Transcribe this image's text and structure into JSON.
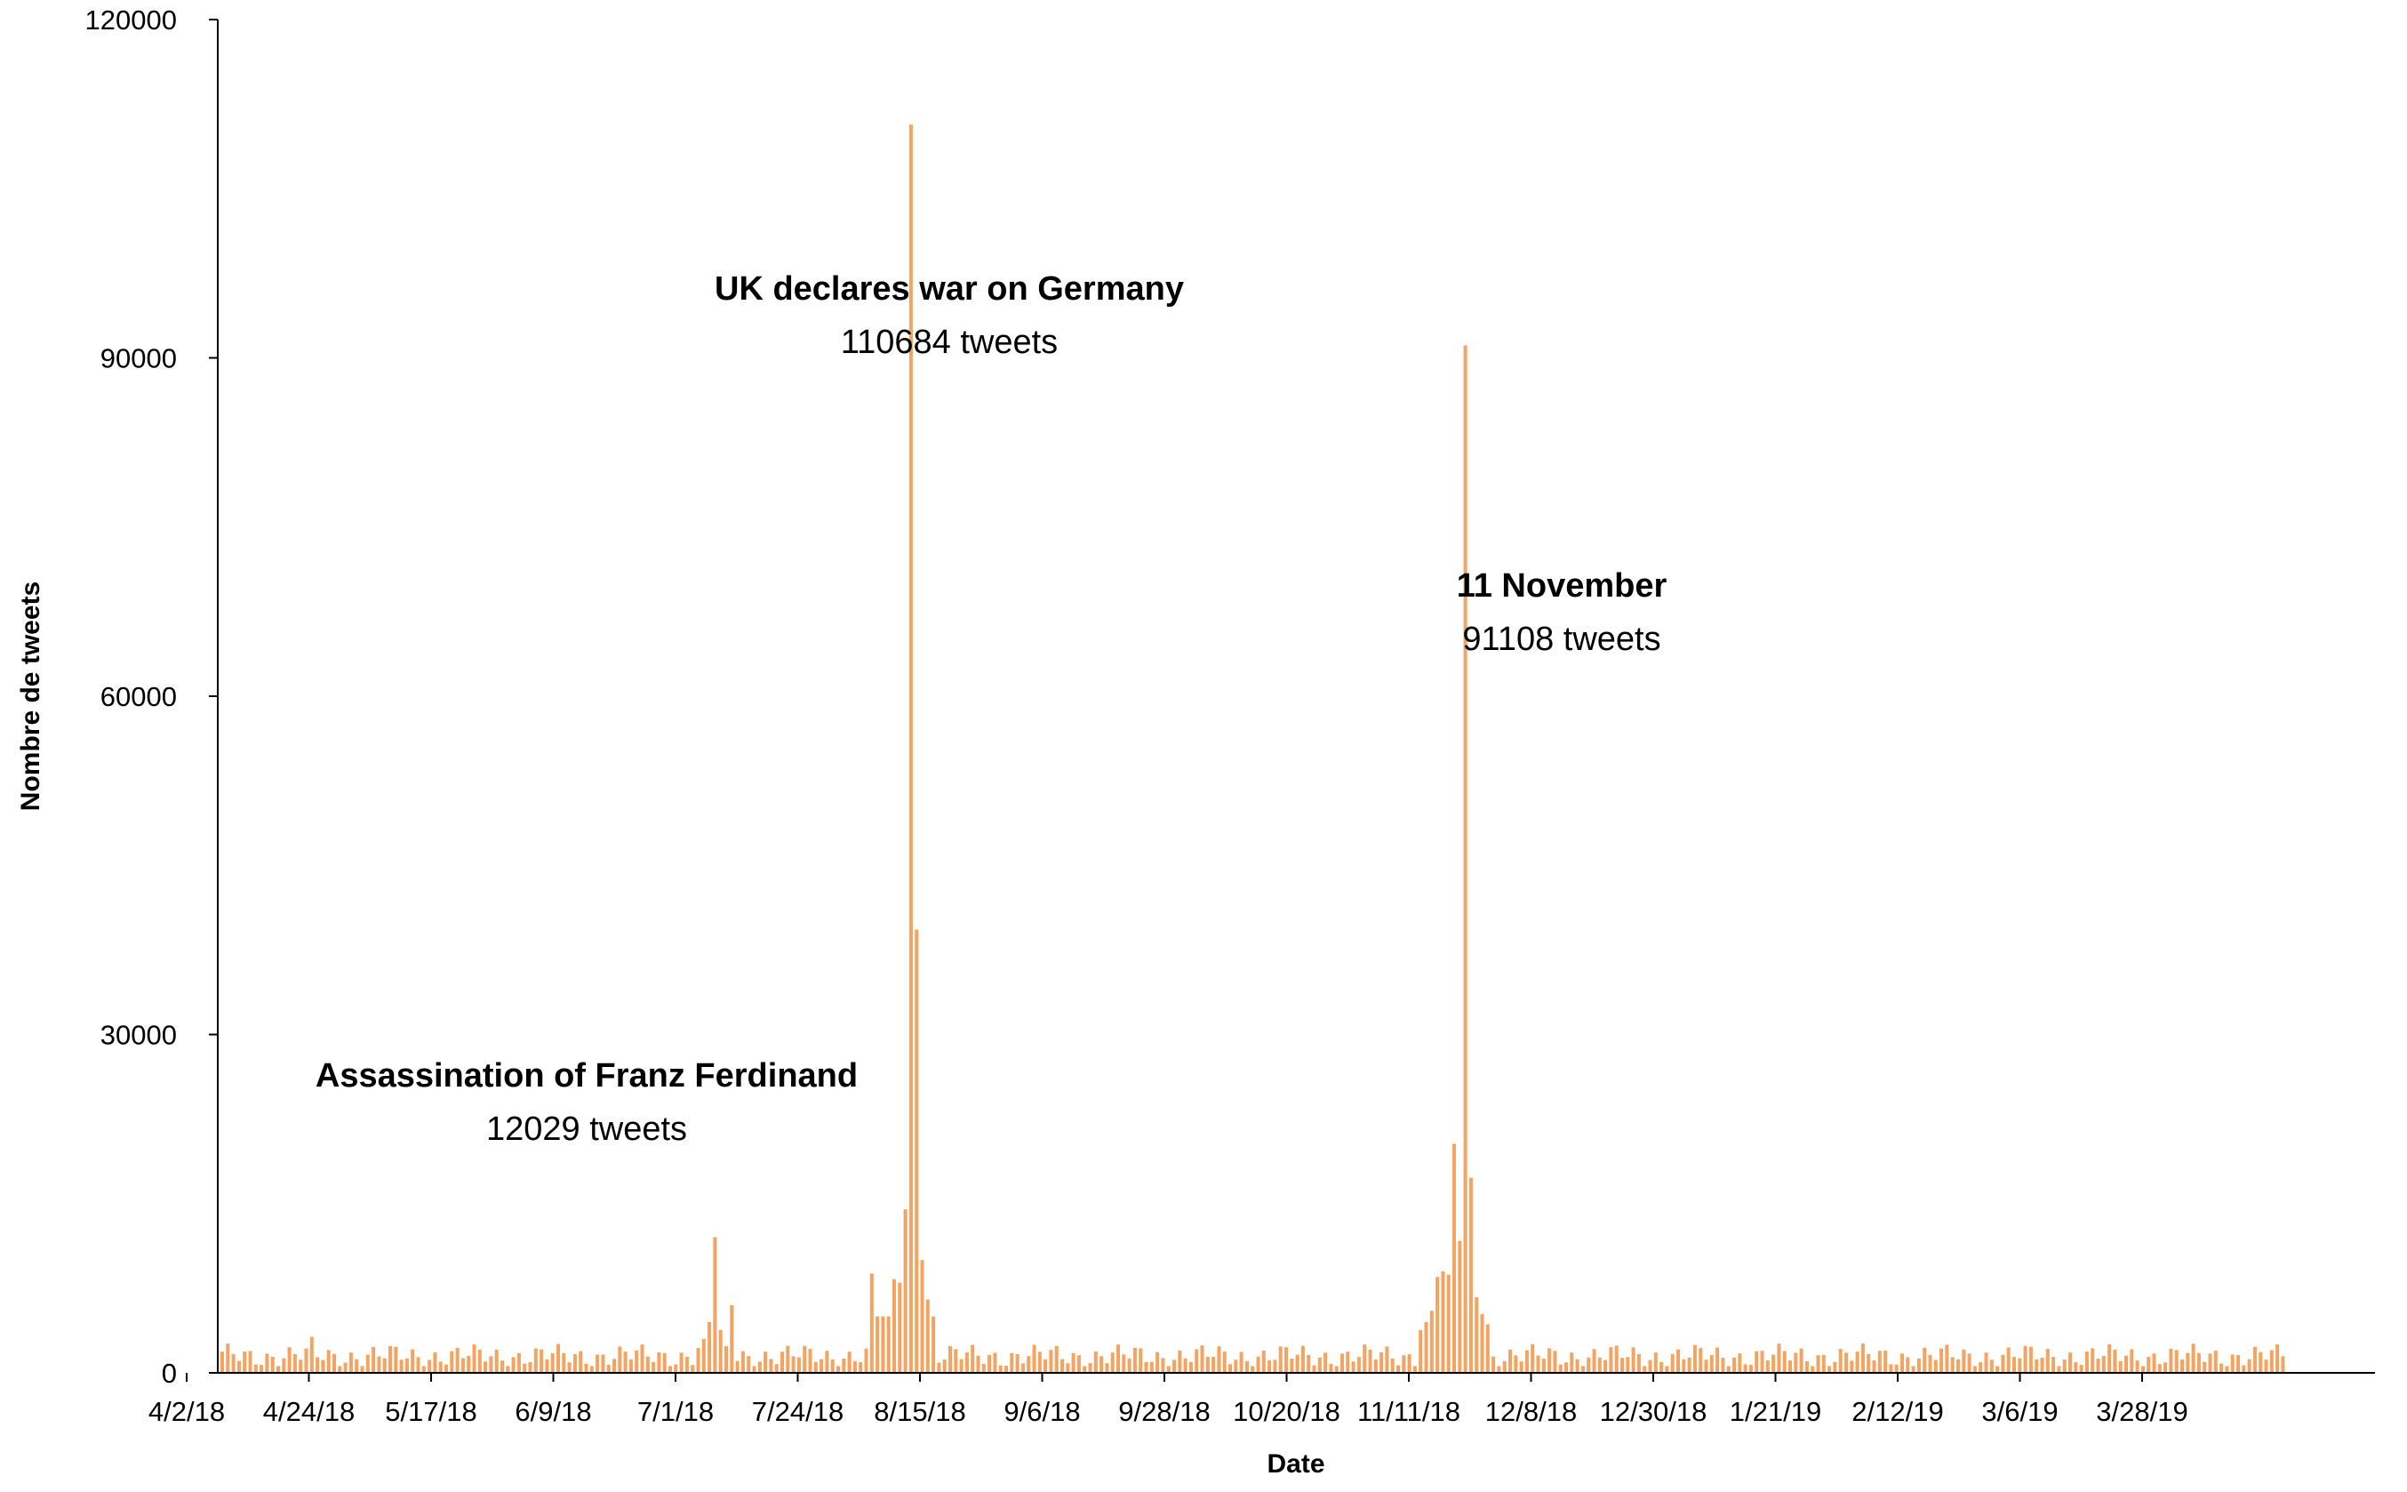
{
  "chart_data": {
    "type": "bar",
    "title": "",
    "xlabel": "Date",
    "ylabel": "Nombre de tweets",
    "ylim": [
      0,
      120000
    ],
    "y_ticks": [
      "0",
      "30000",
      "60000",
      "90000",
      "120000"
    ],
    "x_tick_labels": [
      "4/2/18",
      "4/24/18",
      "5/17/18",
      "6/9/18",
      "7/1/18",
      "7/24/18",
      "8/15/18",
      "9/6/18",
      "9/28/18",
      "10/20/18",
      "11/11/18",
      "12/8/18",
      "12/30/18",
      "1/21/19",
      "2/12/19",
      "3/6/19",
      "3/28/19"
    ],
    "grid": false,
    "legend": "none",
    "bar_color": "#F4A460",
    "baseline": {
      "start": "2018-04-02",
      "end": "2019-04-05",
      "typical_daily_tweets": 2000
    },
    "key_values": [
      {
        "date": "2018-04-18",
        "value": 3200
      },
      {
        "date": "2018-06-26",
        "value": 2200
      },
      {
        "date": "2018-06-27",
        "value": 3000
      },
      {
        "date": "2018-06-28",
        "value": 4500
      },
      {
        "date": "2018-06-29",
        "value": 12029
      },
      {
        "date": "2018-06-30",
        "value": 3800
      },
      {
        "date": "2018-07-02",
        "value": 6000
      },
      {
        "date": "2018-07-27",
        "value": 8800
      },
      {
        "date": "2018-07-28",
        "value": 5000
      },
      {
        "date": "2018-07-29",
        "value": 5000
      },
      {
        "date": "2018-07-30",
        "value": 5000
      },
      {
        "date": "2018-07-31",
        "value": 8300
      },
      {
        "date": "2018-08-01",
        "value": 8000
      },
      {
        "date": "2018-08-02",
        "value": 14500
      },
      {
        "date": "2018-08-03",
        "value": 110684
      },
      {
        "date": "2018-08-04",
        "value": 39300
      },
      {
        "date": "2018-08-05",
        "value": 10000
      },
      {
        "date": "2018-08-06",
        "value": 6500
      },
      {
        "date": "2018-08-07",
        "value": 5000
      },
      {
        "date": "2018-11-02",
        "value": 3800
      },
      {
        "date": "2018-11-03",
        "value": 4500
      },
      {
        "date": "2018-11-04",
        "value": 5500
      },
      {
        "date": "2018-11-05",
        "value": 8500
      },
      {
        "date": "2018-11-06",
        "value": 9000
      },
      {
        "date": "2018-11-07",
        "value": 8700
      },
      {
        "date": "2018-11-08",
        "value": 20300
      },
      {
        "date": "2018-11-09",
        "value": 11700
      },
      {
        "date": "2018-11-10",
        "value": 91108
      },
      {
        "date": "2018-11-11",
        "value": 17300
      },
      {
        "date": "2018-11-12",
        "value": 6700
      },
      {
        "date": "2018-11-13",
        "value": 5200
      },
      {
        "date": "2018-11-14",
        "value": 4300
      }
    ],
    "annotations": [
      {
        "title": "Assassination of Franz Ferdinand",
        "value_text": "12029 tweets"
      },
      {
        "title": "UK declares war on Germany",
        "value_text": "110684 tweets"
      },
      {
        "title": "11 November",
        "value_text": "91108 tweets"
      }
    ]
  }
}
